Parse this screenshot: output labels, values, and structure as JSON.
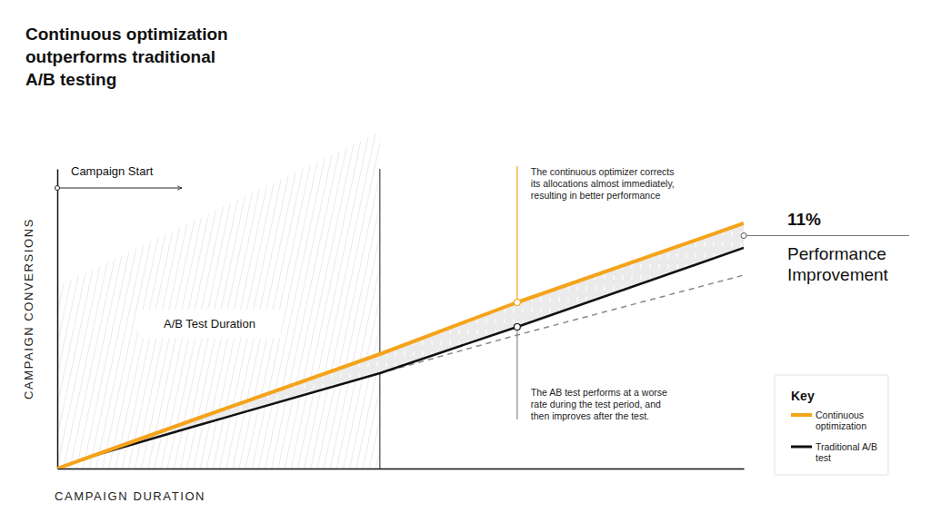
{
  "chart_data": {
    "type": "line",
    "title": "Continuous optimization\noutperforms traditional\nA/B testing",
    "x_label": "CAMPAIGN DURATION",
    "y_label": "CAMPAIGN CONVERSIONS",
    "x": [
      0,
      5,
      20,
      47,
      67,
      100
    ],
    "xlim": [
      0,
      100
    ],
    "ylim": [
      0,
      110
    ],
    "xticks": [],
    "yticks": [],
    "tick_labels": false,
    "grid": false,
    "legend": "lower right",
    "legend_title": "Key",
    "series": [
      {
        "name": "Continuous optimization",
        "color": "#f5a31a",
        "values": [
          0,
          4.5,
          18,
          42,
          61,
          90
        ]
      },
      {
        "name": "Traditional A/B test",
        "color": "#111111",
        "values": [
          0,
          4.5,
          15.5,
          35,
          52,
          81
        ]
      },
      {
        "color": "#888888",
        "line_style": "dashed",
        "values": [
          null,
          null,
          null,
          35,
          49,
          71
        ]
      }
    ],
    "test_period": {
      "label": "A/B Test Duration",
      "x": [
        0,
        47
      ]
    },
    "campaign_start": "Campaign Start",
    "annotations": [
      {
        "text": "The continuous optimizer corrects\nits allocations almost immediately,\nresulting in better performance",
        "x": 67,
        "y": 61
      },
      {
        "text": "The AB test performs at a worse\nrate during the test period, and\nthen improves after the test.",
        "x": 67,
        "y": 52
      }
    ],
    "callout": {
      "value": 11,
      "label": "11%",
      "text": "Performance\nImprovement"
    }
  }
}
